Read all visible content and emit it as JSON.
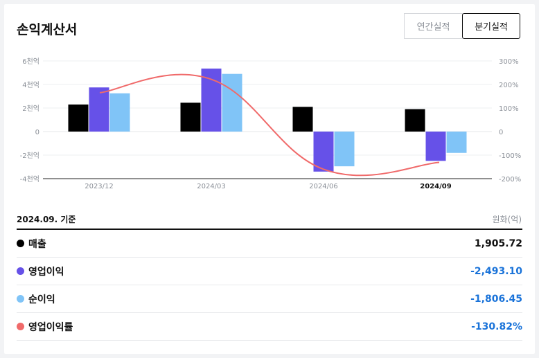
{
  "header": {
    "title": "손익계산서",
    "toggle_annual": "연간실적",
    "toggle_quarter": "분기실적"
  },
  "basis_label": "2024.09. 기준",
  "unit_label": "원화(억)",
  "chart_data": {
    "type": "bar",
    "categories": [
      "2023/12",
      "2024/03",
      "2024/06",
      "2024/09"
    ],
    "selected_category": "2024/09",
    "series": [
      {
        "key": "sales",
        "color": "#000000",
        "axis": "left",
        "values": [
          2.3,
          2.45,
          2.1,
          1.905
        ]
      },
      {
        "key": "op_income",
        "color": "#6651e8",
        "axis": "left",
        "values": [
          3.75,
          5.35,
          -3.4,
          -2.49
        ]
      },
      {
        "key": "net_income",
        "color": "#80c4f7",
        "axis": "left",
        "values": [
          3.25,
          4.9,
          -2.95,
          -1.81
        ]
      },
      {
        "key": "op_margin",
        "type": "line",
        "color": "#f06a6a",
        "axis": "right",
        "values": [
          165,
          222,
          -160,
          -131
        ]
      }
    ],
    "left_axis": {
      "ylim": [
        -4,
        6
      ],
      "ticks": [
        "-4천억",
        "-2천억",
        "0",
        "2천억",
        "4천억",
        "6천억"
      ],
      "tick_values": [
        -4,
        -2,
        0,
        2,
        4,
        6
      ]
    },
    "right_axis": {
      "ylim": [
        -200,
        300
      ],
      "ticks": [
        "-200%",
        "-100%",
        "0",
        "100%",
        "200%",
        "300%"
      ],
      "tick_values": [
        -200,
        -100,
        0,
        100,
        200,
        300
      ]
    },
    "grid": true
  },
  "rows": [
    {
      "label": "매출",
      "value": "1,905.72",
      "color": "#000000",
      "value_color": "#111111"
    },
    {
      "label": "영업이익",
      "value": "-2,493.10",
      "color": "#6651e8",
      "value_color": "#1a73d9"
    },
    {
      "label": "순이익",
      "value": "-1,806.45",
      "color": "#80c4f7",
      "value_color": "#1a73d9"
    },
    {
      "label": "영업이익률",
      "value": "-130.82%",
      "color": "#f06a6a",
      "value_color": "#1a73d9"
    }
  ]
}
